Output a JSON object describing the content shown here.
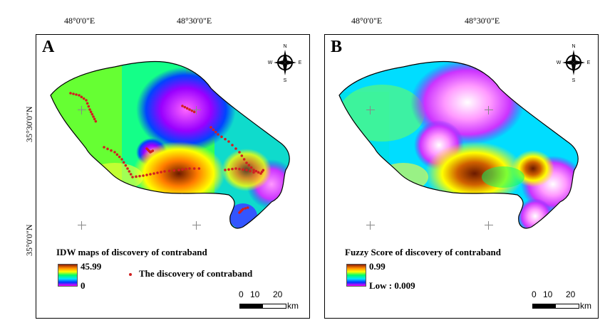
{
  "graticule": {
    "lon1": "48°0'0\"E",
    "lon2": "48°30'0\"E",
    "lat1": "35°30'0\"N",
    "lat2": "35°0'0\"N"
  },
  "panels": [
    {
      "letter": "A",
      "legend_title": "IDW maps of discovery of contraband",
      "legend_high": "45.99",
      "legend_low": "0",
      "discovery_label": "The discovery of contraband"
    },
    {
      "letter": "B",
      "legend_title": "Fuzzy Score of discovery of contraband",
      "legend_high": "0.99",
      "legend_low": "Low : 0.009"
    }
  ],
  "scale": {
    "ticks": [
      "0",
      "10",
      "20"
    ],
    "unit": "km"
  },
  "compass": {
    "n": "N",
    "s": "S",
    "e": "E",
    "w": "W"
  },
  "colors": {
    "point": "#d02020"
  }
}
